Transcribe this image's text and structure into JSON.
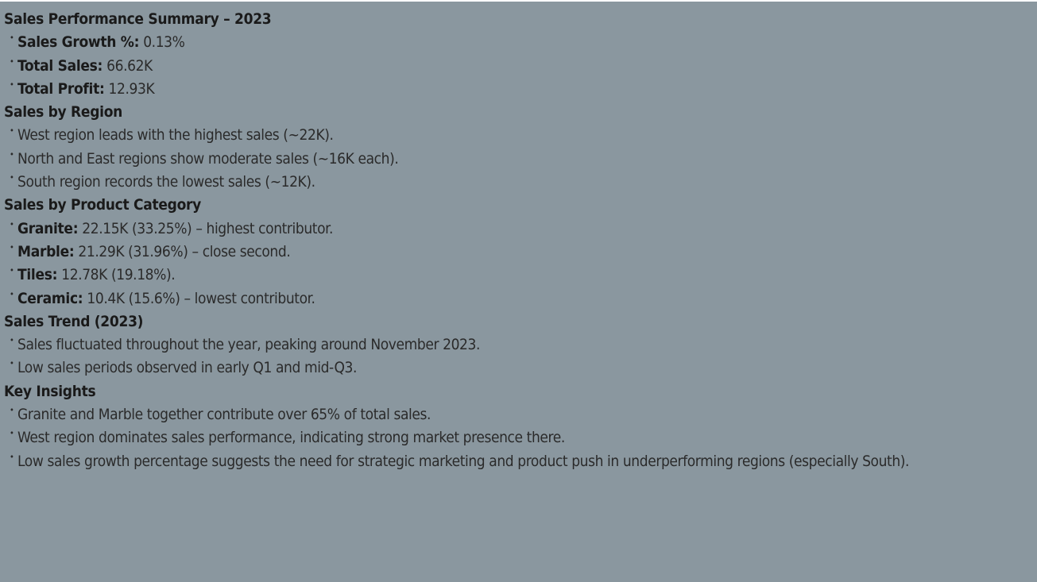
{
  "sections": [
    {
      "heading": "Sales Performance Summary – 2023",
      "items": [
        {
          "label": "Sales Growth %:",
          "text": " 0.13%"
        },
        {
          "label": "Total Sales:",
          "text": " 66.62K"
        },
        {
          "label": "Total Profit:",
          "text": " 12.93K"
        }
      ]
    },
    {
      "heading": "Sales by Region",
      "items": [
        {
          "label": "",
          "text": "West region leads with the highest sales (~22K)."
        },
        {
          "label": "",
          "text": "North and East regions show moderate sales (~16K each)."
        },
        {
          "label": "",
          "text": "South region records the lowest sales (~12K)."
        }
      ]
    },
    {
      "heading": "Sales by Product Category",
      "items": [
        {
          "label": "Granite:",
          "text": " 22.15K (33.25%) – highest contributor."
        },
        {
          "label": "Marble:",
          "text": " 21.29K (31.96%) – close second."
        },
        {
          "label": "Tiles:",
          "text": " 12.78K (19.18%)."
        },
        {
          "label": "Ceramic:",
          "text": " 10.4K (15.6%) – lowest contributor."
        }
      ]
    },
    {
      "heading": "Sales Trend (2023)",
      "items": [
        {
          "label": "",
          "text": "Sales fluctuated throughout the year, peaking around November 2023."
        },
        {
          "label": "",
          "text": "Low sales periods observed in early Q1 and mid-Q3."
        }
      ]
    },
    {
      "heading": "Key Insights",
      "items": [
        {
          "label": "",
          "text": "Granite and Marble together contribute over 65% of total sales."
        },
        {
          "label": "",
          "text": "West region dominates sales performance, indicating strong market presence there."
        },
        {
          "label": "",
          "text": "Low sales growth percentage suggests the need for strategic marketing and product push in underperforming regions (especially South)."
        }
      ]
    }
  ],
  "colors": {
    "panel_background": "#8a979f",
    "text": "#1f1f1f"
  }
}
